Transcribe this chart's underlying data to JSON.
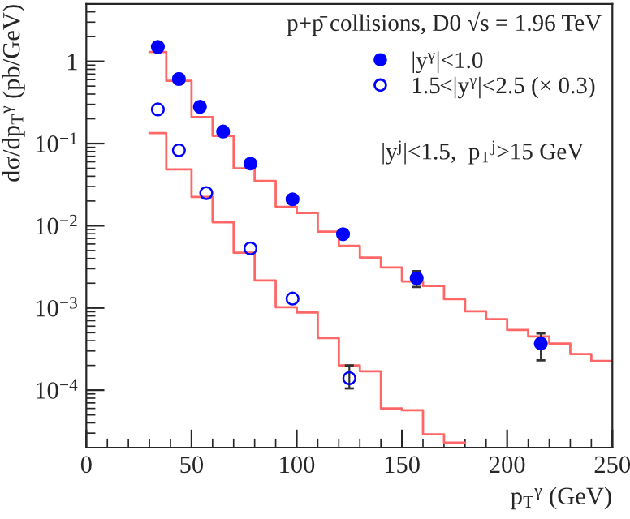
{
  "chart_data": {
    "type": "scatter",
    "xlabel": "p$_{T}$$^{γ}$ (GeV)",
    "ylabel": "dσ/dp$_{T}$$^{γ}$ (pb/GeV)",
    "annotations": [
      "p+p̄ collisions, D0 √s = 1.96 TeV",
      "|y$^{j}$|<1.5,  p$_{T}$$^{j}$>15 GeV"
    ],
    "log": "y",
    "legend": "top right",
    "grid": false,
    "xlim": [
      0,
      250
    ],
    "xticks": [
      0,
      50,
      100,
      150,
      200,
      250
    ],
    "ylim": [
      2e-05,
      5
    ],
    "yticks": [
      {
        "value": 0.0001,
        "label": "10$^{−4}$"
      },
      {
        "value": 0.001,
        "label": "10$^{−3}$"
      },
      {
        "value": 0.01,
        "label": "10$^{−2}$"
      },
      {
        "value": 0.1,
        "label": "10$^{−1}$"
      },
      {
        "value": 1,
        "label": "1"
      }
    ],
    "series": [
      {
        "name": "|y$^{γ}$|<1.0",
        "color": "#0000ff",
        "marker": "circle",
        "x": [
          34,
          44,
          54,
          65,
          78,
          98,
          122,
          157,
          216
        ],
        "values": [
          1.5,
          0.61,
          0.28,
          0.14,
          0.057,
          0.021,
          0.0079,
          0.0023,
          0.00037
        ],
        "errors": [
          null,
          null,
          null,
          null,
          null,
          null,
          null,
          [
            0.0018,
            0.0028
          ],
          [
            0.00023,
            0.00049
          ]
        ]
      },
      {
        "name": "1.5<|y$^{γ}$|<2.5 (× 0.3)",
        "color": "#0000ff",
        "marker": "circle",
        "x": [
          34,
          44,
          57,
          78,
          98,
          125
        ],
        "values": [
          0.26,
          0.083,
          0.025,
          0.0053,
          0.0013,
          0.00014
        ],
        "errors": [
          null,
          null,
          null,
          null,
          null,
          [
            0.000105,
            0.0002
          ]
        ]
      },
      {
        "type": "step",
        "color": "#ff6666",
        "x": [
          30,
          38,
          50,
          60,
          70,
          80,
          90,
          100,
          110,
          120,
          130,
          140,
          150,
          160,
          170,
          180,
          190,
          200,
          210,
          220,
          230,
          240,
          250
        ],
        "values": [
          1.3,
          0.58,
          0.21,
          0.124,
          0.05,
          0.035,
          0.017,
          0.0143,
          0.0085,
          0.0057,
          0.0041,
          0.0031,
          0.0021,
          0.00185,
          0.00128,
          0.00091,
          0.00073,
          0.00054,
          0.00045,
          0.00037,
          0.000275,
          0.000226,
          0.000226
        ]
      },
      {
        "type": "step",
        "color": "#ff6666",
        "x": [
          30,
          38,
          50,
          60,
          70,
          80,
          90,
          100,
          110,
          120,
          130,
          140,
          150,
          160,
          170,
          180
        ],
        "values": [
          0.134,
          0.0485,
          0.0224,
          0.011,
          0.0047,
          0.00216,
          0.00102,
          0.00088,
          0.00043,
          0.0002,
          0.00017,
          6e-05,
          5.7e-05,
          2.9e-05,
          2.3e-05,
          2.3e-05
        ]
      }
    ]
  }
}
